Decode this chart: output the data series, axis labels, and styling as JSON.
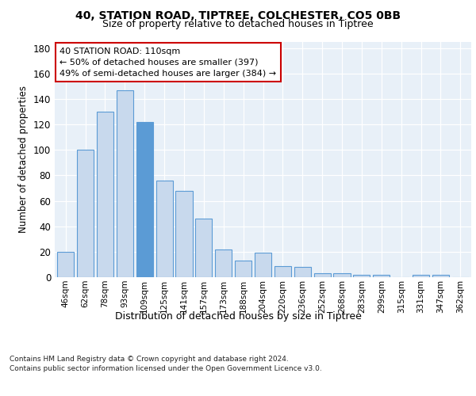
{
  "title_line1": "40, STATION ROAD, TIPTREE, COLCHESTER, CO5 0BB",
  "title_line2": "Size of property relative to detached houses in Tiptree",
  "xlabel": "Distribution of detached houses by size in Tiptree",
  "ylabel": "Number of detached properties",
  "categories": [
    "46sqm",
    "62sqm",
    "78sqm",
    "93sqm",
    "109sqm",
    "125sqm",
    "141sqm",
    "157sqm",
    "173sqm",
    "188sqm",
    "204sqm",
    "220sqm",
    "236sqm",
    "252sqm",
    "268sqm",
    "283sqm",
    "299sqm",
    "315sqm",
    "331sqm",
    "347sqm",
    "362sqm"
  ],
  "values": [
    20,
    100,
    130,
    147,
    122,
    76,
    68,
    46,
    22,
    13,
    19,
    9,
    8,
    3,
    3,
    2,
    2,
    0,
    2,
    2,
    0
  ],
  "bar_color": "#c8d9ed",
  "bar_edge_color": "#5b9bd5",
  "highlight_bar_index": 4,
  "highlight_bar_color": "#5b9bd5",
  "annotation_text_line1": "40 STATION ROAD: 110sqm",
  "annotation_text_line2": "← 50% of detached houses are smaller (397)",
  "annotation_text_line3": "49% of semi-detached houses are larger (384) →",
  "annotation_box_facecolor": "#ffffff",
  "annotation_box_edgecolor": "#cc0000",
  "footnote_line1": "Contains HM Land Registry data © Crown copyright and database right 2024.",
  "footnote_line2": "Contains public sector information licensed under the Open Government Licence v3.0.",
  "bg_color": "#e8f0f8",
  "ylim": [
    0,
    185
  ],
  "yticks": [
    0,
    20,
    40,
    60,
    80,
    100,
    120,
    140,
    160,
    180
  ]
}
